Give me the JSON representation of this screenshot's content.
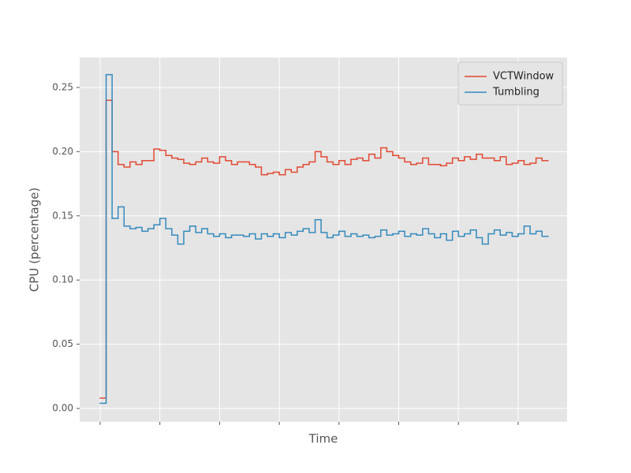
{
  "chart_data": {
    "type": "step",
    "xlabel": "Time",
    "ylabel": "CPU (percentage)",
    "ylim": [
      -0.0104,
      0.2733
    ],
    "yticks": [
      {
        "value": 0,
        "label": "0.00"
      },
      {
        "value": 0.05,
        "label": "0.05"
      },
      {
        "value": 0.1,
        "label": "0.10"
      },
      {
        "value": 0.15,
        "label": "0.15"
      },
      {
        "value": 0.2,
        "label": "0.20"
      },
      {
        "value": 0.25,
        "label": "0.25"
      }
    ],
    "grid": true,
    "legend": "upper right",
    "series": [
      {
        "name": "VCTWindow",
        "color": "#E24A33",
        "values": [
          0.008,
          0.24,
          0.2,
          0.19,
          0.188,
          0.192,
          0.19,
          0.193,
          0.193,
          0.202,
          0.201,
          0.197,
          0.195,
          0.194,
          0.191,
          0.19,
          0.192,
          0.195,
          0.192,
          0.191,
          0.196,
          0.193,
          0.19,
          0.192,
          0.192,
          0.19,
          0.188,
          0.182,
          0.183,
          0.184,
          0.182,
          0.186,
          0.184,
          0.188,
          0.19,
          0.192,
          0.2,
          0.196,
          0.192,
          0.19,
          0.193,
          0.19,
          0.194,
          0.195,
          0.193,
          0.198,
          0.195,
          0.203,
          0.2,
          0.197,
          0.195,
          0.192,
          0.19,
          0.191,
          0.195,
          0.19,
          0.19,
          0.189,
          0.191,
          0.195,
          0.193,
          0.196,
          0.194,
          0.198,
          0.195,
          0.195,
          0.193,
          0.196,
          0.19,
          0.191,
          0.193,
          0.19,
          0.191,
          0.195,
          0.193
        ]
      },
      {
        "name": "Tumbling",
        "color": "#348ABD",
        "values": [
          0.004,
          0.26,
          0.148,
          0.157,
          0.142,
          0.14,
          0.141,
          0.138,
          0.14,
          0.143,
          0.148,
          0.14,
          0.135,
          0.128,
          0.138,
          0.142,
          0.137,
          0.14,
          0.136,
          0.134,
          0.136,
          0.133,
          0.135,
          0.135,
          0.134,
          0.136,
          0.132,
          0.136,
          0.134,
          0.136,
          0.133,
          0.137,
          0.135,
          0.138,
          0.14,
          0.137,
          0.147,
          0.137,
          0.133,
          0.135,
          0.138,
          0.134,
          0.136,
          0.134,
          0.135,
          0.133,
          0.134,
          0.139,
          0.135,
          0.136,
          0.138,
          0.134,
          0.136,
          0.135,
          0.14,
          0.136,
          0.133,
          0.136,
          0.131,
          0.138,
          0.134,
          0.136,
          0.139,
          0.133,
          0.128,
          0.136,
          0.139,
          0.135,
          0.137,
          0.134,
          0.136,
          0.142,
          0.136,
          0.138,
          0.134
        ]
      }
    ]
  }
}
